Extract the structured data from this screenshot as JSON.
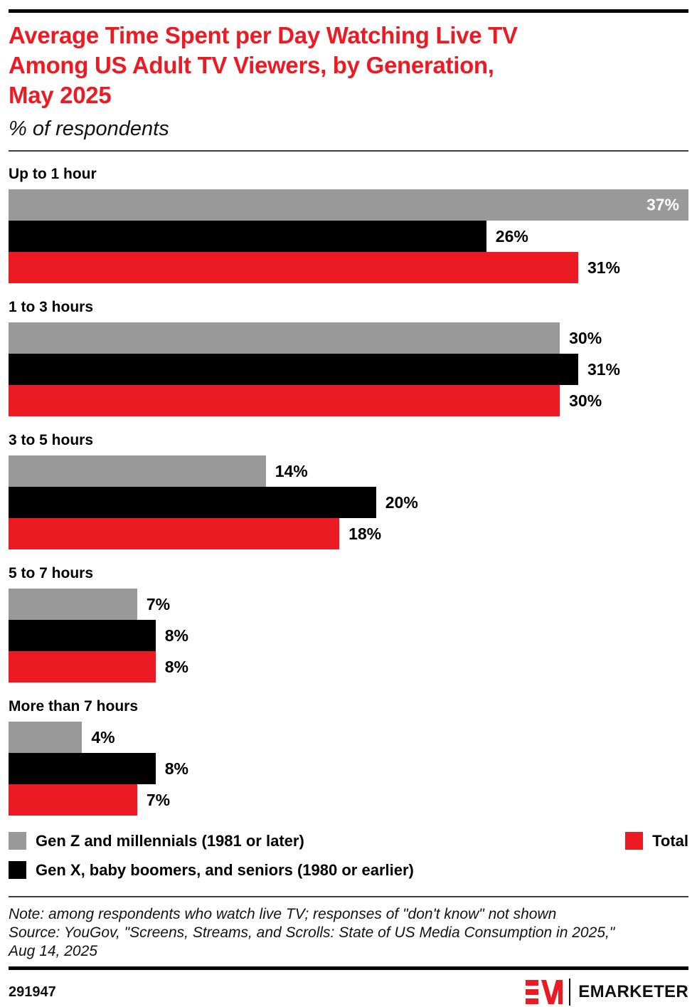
{
  "header": {
    "title_lines": [
      "Average Time Spent per Day Watching Live TV",
      "Among US Adult TV Viewers, by Generation,",
      "May 2025"
    ],
    "subtitle": "% of respondents"
  },
  "chart_data": {
    "type": "bar",
    "orientation": "horizontal",
    "title": "Average Time Spent per Day Watching Live TV Among US Adult TV Viewers, by Generation, May 2025",
    "subtitle": "% of respondents",
    "categories": [
      "Up to 1 hour",
      "1 to 3 hours",
      "3 to 5 hours",
      "5 to 7 hours",
      "More than 7 hours"
    ],
    "series": [
      {
        "key": "gen-z-millennials",
        "name": "Gen Z and millennials (1981 or later)",
        "color": "#999999",
        "values": [
          37,
          30,
          14,
          7,
          4
        ]
      },
      {
        "key": "gen-x-boomers-seniors",
        "name": "Gen X, baby boomers, and seniors (1980 or earlier)",
        "color": "#000000",
        "values": [
          26,
          31,
          20,
          8,
          8
        ]
      },
      {
        "key": "total",
        "name": "Total",
        "color": "#EC1B23",
        "values": [
          31,
          30,
          18,
          8,
          7
        ]
      }
    ],
    "value_suffix": "%",
    "xlim": [
      0,
      37
    ],
    "grid": false,
    "legend_position": "bottom"
  },
  "notes": {
    "line1": "Note: among respondents who watch live TV; responses of \"don't know\" not shown",
    "line2": "Source: YouGov, \"Screens, Streams, and Scrolls: State of US Media Consumption in 2025,\"",
    "line3": "Aug 14, 2025"
  },
  "footer": {
    "chart_id": "291947",
    "brand": "EMARKETER",
    "logo": "EM"
  },
  "colors": {
    "accent_red": "#EC1B23",
    "bar_gray": "#999999",
    "bar_black": "#000000",
    "rule_black": "#000000"
  }
}
